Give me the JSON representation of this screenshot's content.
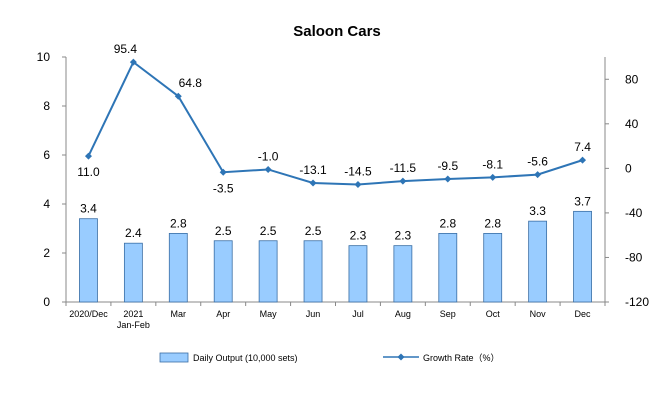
{
  "chart_data": {
    "type": "bar+line",
    "title": "Saloon Cars",
    "categories": [
      "2020/Dec",
      "2021 Jan-Feb",
      "Mar",
      "Apr",
      "May",
      "Jun",
      "Jul",
      "Aug",
      "Sep",
      "Oct",
      "Nov",
      "Dec"
    ],
    "category_lines": [
      [
        "2020/Dec"
      ],
      [
        "2021",
        "Jan-Feb"
      ],
      [
        "Mar"
      ],
      [
        "Apr"
      ],
      [
        "May"
      ],
      [
        "Jun"
      ],
      [
        "Jul"
      ],
      [
        "Aug"
      ],
      [
        "Sep"
      ],
      [
        "Oct"
      ],
      [
        "Nov"
      ],
      [
        "Dec"
      ]
    ],
    "series": [
      {
        "name": "Daily Output (10,000 sets)",
        "type": "bar",
        "axis": "left",
        "color": "#99CCFF",
        "values": [
          3.4,
          2.4,
          2.8,
          2.5,
          2.5,
          2.5,
          2.3,
          2.3,
          2.8,
          2.8,
          3.3,
          3.7
        ]
      },
      {
        "name": "Growth Rate（%）",
        "type": "line",
        "axis": "right",
        "color": "#2E75B6",
        "values": [
          11.0,
          95.4,
          64.8,
          -3.5,
          -1.0,
          -13.1,
          -14.5,
          -11.5,
          -9.5,
          -8.1,
          -5.6,
          7.4
        ]
      }
    ],
    "y_left": {
      "min": 0,
      "max": 10,
      "ticks": [
        0,
        2,
        4,
        6,
        8,
        10
      ]
    },
    "y_right": {
      "min": -120,
      "max": 100,
      "ticks": [
        -120,
        -80,
        -40,
        0,
        40,
        80
      ]
    },
    "bar_labels": [
      "3.4",
      "2.4",
      "2.8",
      "2.5",
      "2.5",
      "2.5",
      "2.3",
      "2.3",
      "2.8",
      "2.8",
      "3.3",
      "3.7"
    ],
    "line_labels": [
      "11.0",
      "95.4",
      "64.8",
      "-3.5",
      "-1.0",
      "-13.1",
      "-14.5",
      "-11.5",
      "-9.5",
      "-8.1",
      "-5.6",
      "7.4"
    ],
    "grid": false,
    "legend_position": "bottom"
  }
}
